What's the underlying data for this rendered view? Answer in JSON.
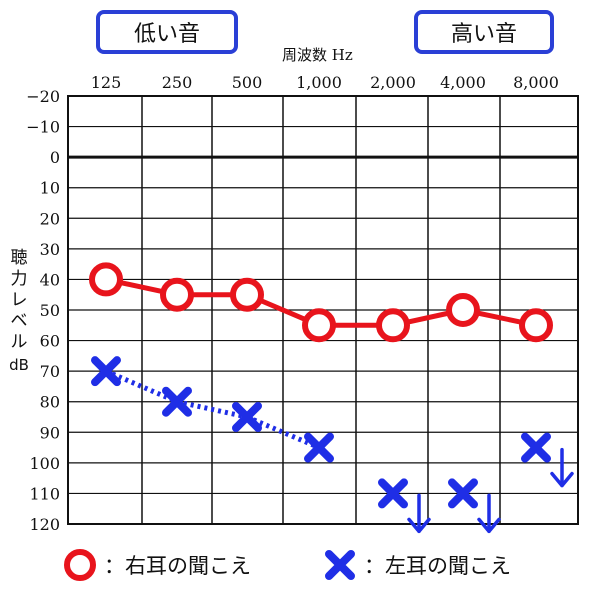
{
  "labels": {
    "low": "低い音",
    "high": "高い音",
    "freq_unit": "周波数 Hz",
    "y_axis": [
      "聴",
      "力",
      "レ",
      "ベ",
      "ル",
      "dB"
    ]
  },
  "legend": {
    "right_label": "：右耳の聞こえ",
    "left_label": "：左耳の聞こえ"
  },
  "colors": {
    "right": "#e8141c",
    "left": "#1f2ee6",
    "grid": "#111111",
    "pill_border": "#2a3fd6"
  },
  "chart_data": {
    "type": "line",
    "categories": [
      "125",
      "250",
      "500",
      "1,000",
      "2,000",
      "4,000",
      "8,000"
    ],
    "y_ticks": [
      "−20",
      "−10",
      "0",
      "10",
      "20",
      "30",
      "40",
      "50",
      "60",
      "70",
      "80",
      "90",
      "100",
      "110",
      "120"
    ],
    "ylim": [
      -20,
      120
    ],
    "y_inverted": true,
    "grid": true,
    "zero_line": 0,
    "series": [
      {
        "key": "right",
        "marker": "circle",
        "line_style": "solid",
        "values": [
          40,
          45,
          45,
          55,
          55,
          50,
          55
        ],
        "connected": [
          true,
          true,
          true,
          true,
          true,
          true,
          true
        ],
        "no_response": [
          false,
          false,
          false,
          false,
          false,
          false,
          false
        ]
      },
      {
        "key": "left",
        "marker": "cross",
        "line_style": "dotted",
        "values": [
          70,
          80,
          85,
          95,
          110,
          110,
          95
        ],
        "connected": [
          true,
          true,
          true,
          true,
          false,
          false,
          false
        ],
        "no_response": [
          false,
          false,
          false,
          false,
          true,
          true,
          true
        ]
      }
    ]
  }
}
